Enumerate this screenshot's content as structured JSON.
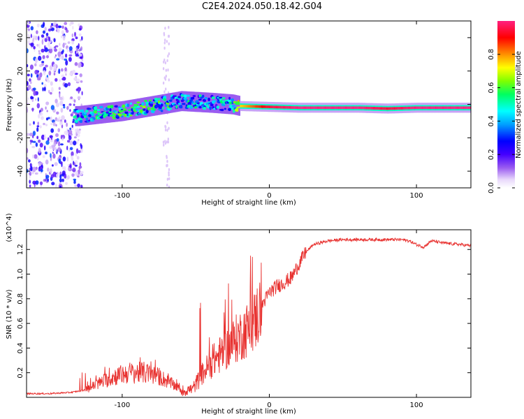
{
  "title": "C2E4.2024.050.18.42.G04",
  "colors": {
    "snr_line": "#e8312f",
    "frame": "#000000",
    "scale": [
      "#ffffff",
      "#ddc8f7",
      "#9a5cf0",
      "#4400ff",
      "#0000ff",
      "#00a0ff",
      "#00ffff",
      "#00ff60",
      "#7fff00",
      "#ffff00",
      "#ff9000",
      "#ff0000",
      "#ff2080"
    ]
  },
  "chart_data": [
    {
      "type": "heatmap",
      "description": "spectrogram",
      "xlabel": "Height of straight line (km)",
      "ylabel": "Frequency (Hz)",
      "xlim": [
        -165,
        137
      ],
      "ylim": [
        -50,
        50
      ],
      "xticks": [
        -100,
        0,
        100
      ],
      "xtick_labels": [
        "-100",
        "0",
        "100"
      ],
      "yticks": [
        -40,
        -20,
        0,
        20,
        40
      ],
      "ytick_labels": [
        "-40",
        "-20",
        "0",
        "20",
        "40"
      ],
      "colorbar": {
        "label": "Normalized spectral amplitude",
        "range": [
          0,
          1
        ],
        "ticks": [
          0.0,
          0.2,
          0.4,
          0.6,
          0.8
        ],
        "tick_labels": [
          "0.0",
          "0.2",
          "0.4",
          "0.6",
          "0.8"
        ]
      },
      "ridge": {
        "x": [
          -130,
          -120,
          -100,
          -80,
          -60,
          -40,
          -25,
          -20,
          0,
          20,
          40,
          60,
          80,
          100,
          120,
          137
        ],
        "freq_hz": [
          -7,
          -6,
          -4,
          -1,
          2,
          1,
          0,
          -1,
          -1.5,
          -2,
          -2,
          -2,
          -2.5,
          -2,
          -2,
          -2
        ],
        "amplitude": [
          0.45,
          0.5,
          0.55,
          0.55,
          0.5,
          0.45,
          0.5,
          0.75,
          0.95,
          1.0,
          1.0,
          1.0,
          0.95,
          1.0,
          1.0,
          1.0
        ]
      }
    },
    {
      "type": "line",
      "xlabel": "Height of straight line (km)",
      "ylabel": "SNR (10 * v/v)",
      "yscale_label": "(x10^4)",
      "xlim": [
        -165,
        137
      ],
      "ylim": [
        0.0,
        1.36
      ],
      "xticks": [
        -100,
        0,
        100
      ],
      "xtick_labels": [
        "-100",
        "0",
        "100"
      ],
      "yticks": [
        0.2,
        0.4,
        0.6,
        0.8,
        1.0,
        1.2
      ],
      "ytick_labels": [
        "0.2",
        "0.4",
        "0.6",
        "0.8",
        "1.0",
        "1.2"
      ],
      "series": [
        {
          "x": [
            -165,
            -150,
            -135,
            -125,
            -115,
            -105,
            -95,
            -85,
            -75,
            -65,
            -58,
            -52,
            -45,
            -38,
            -30,
            -22,
            -15,
            -10,
            -5,
            0,
            5,
            10,
            15,
            20,
            25,
            30,
            40,
            50,
            60,
            70,
            80,
            90,
            95,
            100,
            105,
            110,
            120,
            130,
            137
          ],
          "y": [
            0.03,
            0.03,
            0.04,
            0.06,
            0.12,
            0.17,
            0.2,
            0.2,
            0.17,
            0.1,
            0.05,
            0.07,
            0.2,
            0.3,
            0.38,
            0.48,
            0.55,
            0.62,
            0.75,
            0.85,
            0.9,
            0.93,
            0.97,
            1.08,
            1.18,
            1.24,
            1.27,
            1.28,
            1.28,
            1.28,
            1.28,
            1.28,
            1.27,
            1.24,
            1.22,
            1.27,
            1.25,
            1.24,
            1.23
          ]
        }
      ]
    }
  ]
}
